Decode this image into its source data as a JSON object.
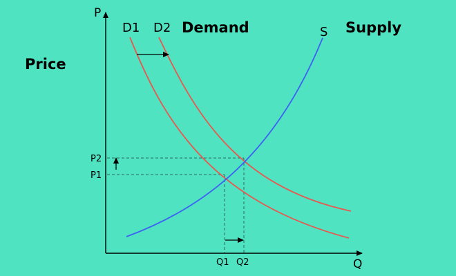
{
  "labels": {
    "price": "Price",
    "demand": "Demand",
    "supply": "Supply"
  },
  "axes": {
    "y_axis": "P",
    "x_axis": "Q"
  },
  "curves": {
    "d1": "D1",
    "d2": "D2",
    "s": "S"
  },
  "ticks": {
    "p1": "P1",
    "p2": "P2",
    "q1": "Q1",
    "q2": "Q2"
  },
  "colors": {
    "background": "#50e3c2",
    "demand_curve": "#e8584e",
    "supply_curve": "#3d62f2",
    "axis": "#000000",
    "guide": "#2b6b5b"
  }
}
